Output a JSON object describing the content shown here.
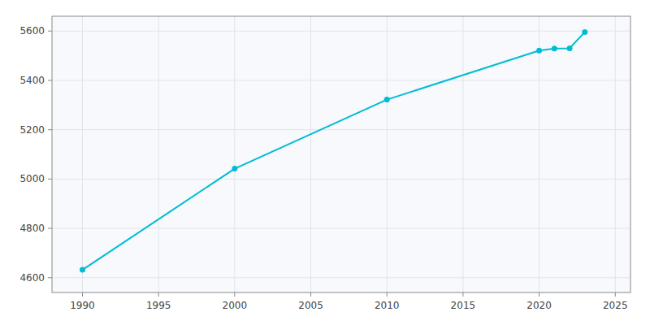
{
  "chart_data": {
    "type": "line",
    "x": [
      1990,
      2000,
      2010,
      2020,
      2021,
      2022,
      2023
    ],
    "values": [
      4632,
      5042,
      5322,
      5521,
      5529,
      5530,
      5596
    ],
    "color": "#00BCD4",
    "marker": "circle",
    "xlim": [
      1988,
      2026
    ],
    "ylim": [
      4540,
      5660
    ],
    "xticks": [
      1990,
      1995,
      2000,
      2005,
      2010,
      2015,
      2020,
      2025
    ],
    "yticks": [
      4600,
      4800,
      5000,
      5200,
      5400,
      5600
    ],
    "grid": true
  }
}
